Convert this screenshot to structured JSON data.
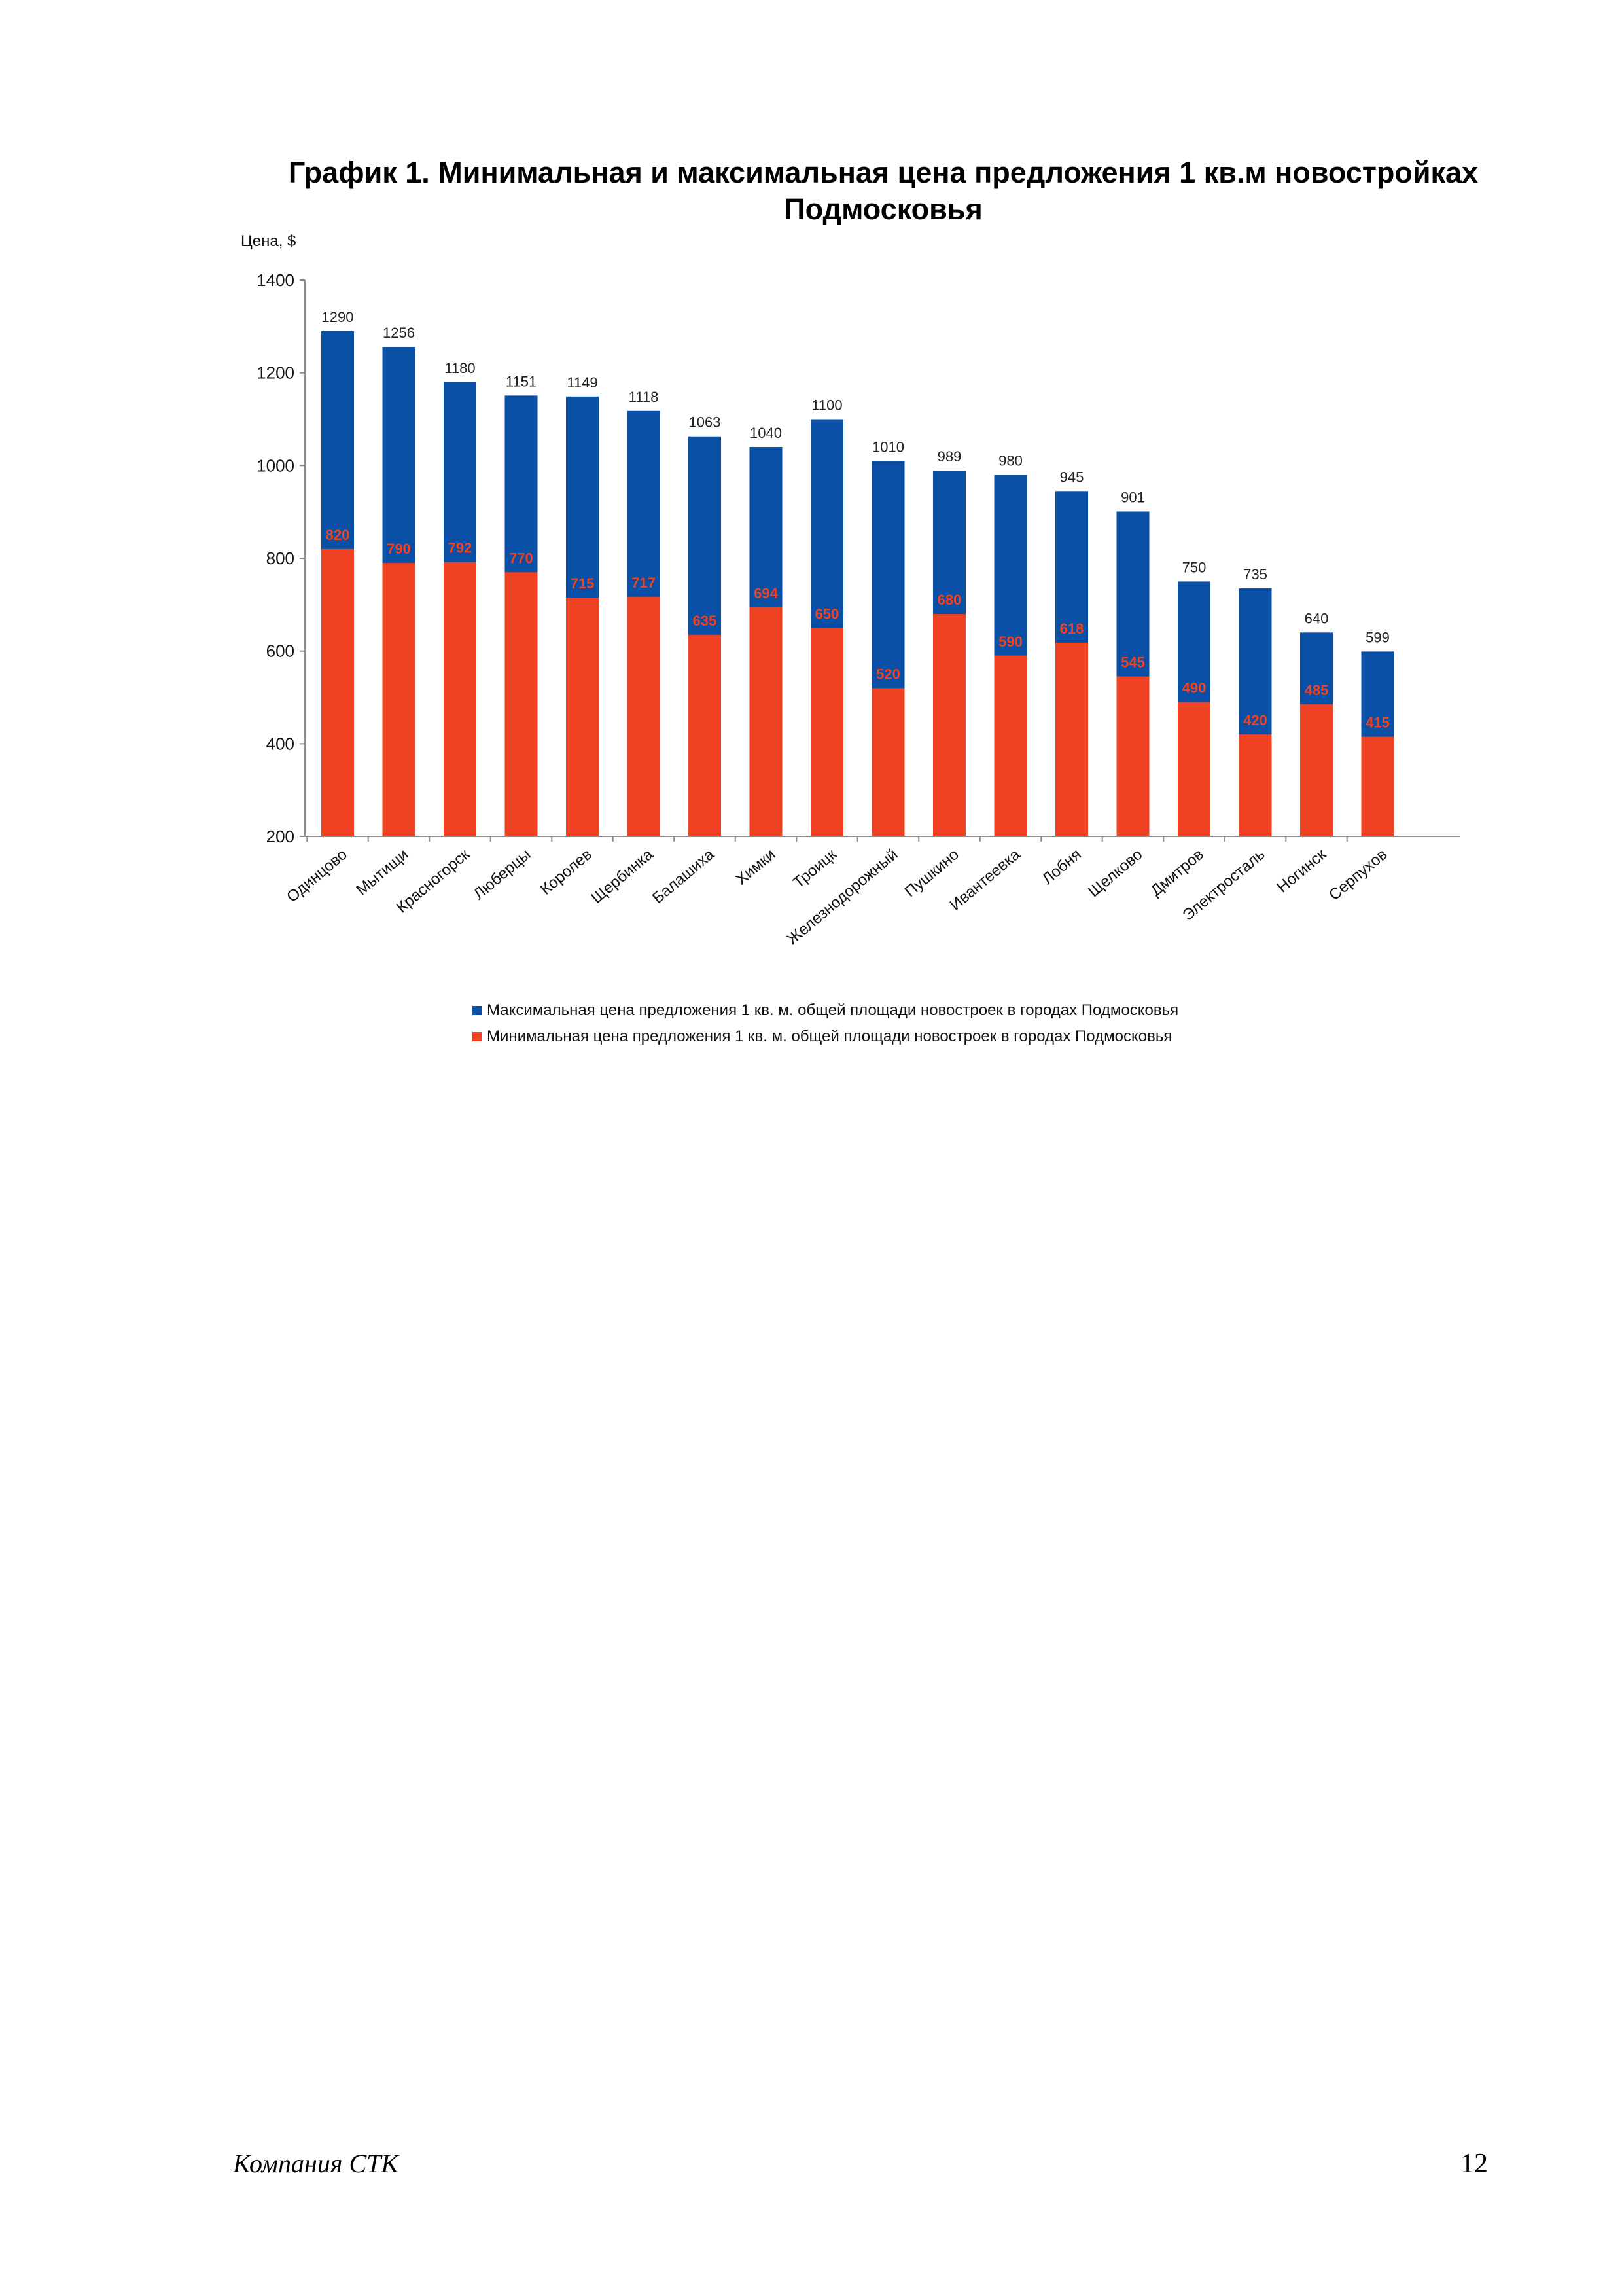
{
  "chart_data": {
    "type": "bar",
    "title": "График 1. Минимальная и максимальная цена предложения 1 кв.м новостройках Подмосковья",
    "ylabel": "Цена, $",
    "xlabel": "",
    "ylim": [
      200,
      1400
    ],
    "yticks": [
      200,
      400,
      600,
      800,
      1000,
      1200,
      1400
    ],
    "grid": false,
    "legend_position": "bottom",
    "categories": [
      "Одинцово",
      "Мытищи",
      "Красногорск",
      "Люберцы",
      "Королев",
      "Щербинка",
      "Балашиха",
      "Химки",
      "Троицк",
      "Железнодорожный",
      "Пушкино",
      "Ивантеевка",
      "Лобня",
      "Щелково",
      "Дмитров",
      "Электросталь",
      "Ногинск",
      "Серпухов"
    ],
    "series": [
      {
        "name": "Максимальная цена предложения 1 кв. м. общей площади новостроек в городах Подмосковья",
        "color": "#0a4fa6",
        "values": [
          1290,
          1256,
          1180,
          1151,
          1149,
          1118,
          1063,
          1040,
          1100,
          1010,
          989,
          980,
          945,
          901,
          750,
          735,
          640,
          599
        ]
      },
      {
        "name": "Минимальная цена предложения 1 кв. м. общей площади новостроек в городах Подмосковья",
        "color": "#ee4222",
        "values": [
          820,
          790,
          792,
          770,
          715,
          717,
          635,
          694,
          650,
          520,
          680,
          590,
          618,
          545,
          490,
          420,
          485,
          415
        ]
      }
    ]
  },
  "footer": {
    "company": "Компания СТК",
    "page_number": "12"
  }
}
